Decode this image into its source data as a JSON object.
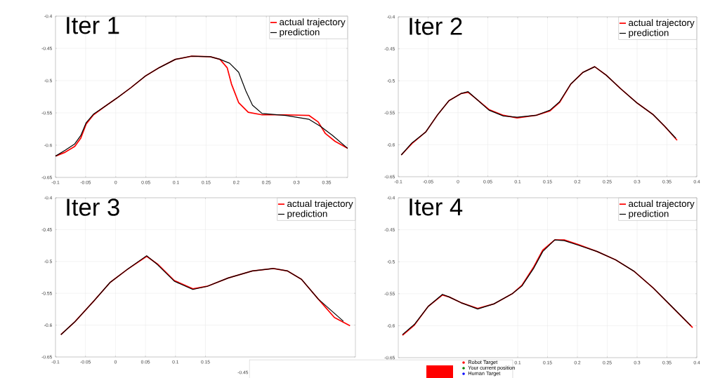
{
  "chart_data": [
    {
      "type": "line",
      "title": "Iter 1",
      "xlim": [
        -0.1,
        0.385
      ],
      "ylim": [
        -0.65,
        -0.4
      ],
      "xticks": [
        -0.1,
        -0.05,
        0,
        0.05,
        0.1,
        0.15,
        0.2,
        0.25,
        0.3,
        0.35
      ],
      "yticks": [
        -0.65,
        -0.6,
        -0.55,
        -0.5,
        -0.45,
        -0.4
      ],
      "grid": true,
      "legend": "top right",
      "series": [
        {
          "name": "actual trajectory",
          "color": "#ff0000",
          "x": [
            -0.1,
            -0.084,
            -0.068,
            -0.058,
            -0.049,
            -0.037,
            -0.018,
            0.002,
            0.025,
            0.049,
            0.072,
            0.099,
            0.126,
            0.157,
            0.173,
            0.185,
            0.192,
            0.204,
            0.22,
            0.243,
            0.282,
            0.321,
            0.336,
            0.348,
            0.364,
            0.385
          ],
          "values": [
            -0.617,
            -0.611,
            -0.602,
            -0.589,
            -0.567,
            -0.553,
            -0.54,
            -0.527,
            -0.511,
            -0.493,
            -0.48,
            -0.467,
            -0.462,
            -0.463,
            -0.467,
            -0.48,
            -0.505,
            -0.534,
            -0.549,
            -0.553,
            -0.553,
            -0.554,
            -0.564,
            -0.582,
            -0.594,
            -0.605
          ]
        },
        {
          "name": "prediction",
          "color": "#000000",
          "x": [
            -0.1,
            -0.084,
            -0.068,
            -0.058,
            -0.049,
            -0.037,
            -0.018,
            0.002,
            0.025,
            0.049,
            0.072,
            0.099,
            0.126,
            0.157,
            0.173,
            0.189,
            0.204,
            0.216,
            0.227,
            0.243,
            0.282,
            0.321,
            0.34,
            0.36,
            0.385
          ],
          "values": [
            -0.617,
            -0.608,
            -0.598,
            -0.585,
            -0.565,
            -0.552,
            -0.54,
            -0.527,
            -0.511,
            -0.493,
            -0.48,
            -0.467,
            -0.462,
            -0.463,
            -0.467,
            -0.473,
            -0.487,
            -0.516,
            -0.538,
            -0.551,
            -0.554,
            -0.56,
            -0.571,
            -0.585,
            -0.605
          ]
        }
      ]
    },
    {
      "type": "line",
      "title": "Iter 2",
      "xlim": [
        -0.1,
        0.4
      ],
      "ylim": [
        -0.65,
        -0.4
      ],
      "xticks": [
        -0.1,
        -0.05,
        0,
        0.05,
        0.1,
        0.15,
        0.2,
        0.25,
        0.3,
        0.35,
        0.4
      ],
      "yticks": [
        -0.65,
        -0.6,
        -0.55,
        -0.5,
        -0.45,
        -0.4
      ],
      "grid": true,
      "legend": "top right",
      "series": [
        {
          "name": "actual trajectory",
          "color": "#ff0000",
          "x": [
            -0.095,
            -0.077,
            -0.054,
            -0.034,
            -0.015,
            0.005,
            0.017,
            0.029,
            0.052,
            0.076,
            0.099,
            0.131,
            0.154,
            0.17,
            0.189,
            0.209,
            0.229,
            0.248,
            0.272,
            0.299,
            0.327,
            0.346,
            0.367
          ],
          "values": [
            -0.616,
            -0.598,
            -0.58,
            -0.553,
            -0.531,
            -0.52,
            -0.518,
            -0.527,
            -0.545,
            -0.554,
            -0.558,
            -0.554,
            -0.547,
            -0.534,
            -0.505,
            -0.487,
            -0.478,
            -0.491,
            -0.512,
            -0.534,
            -0.553,
            -0.571,
            -0.593
          ]
        },
        {
          "name": "prediction",
          "color": "#000000",
          "x": [
            -0.095,
            -0.077,
            -0.054,
            -0.034,
            -0.015,
            0.005,
            0.017,
            0.029,
            0.052,
            0.076,
            0.099,
            0.131,
            0.154,
            0.17,
            0.189,
            0.209,
            0.229,
            0.248,
            0.272,
            0.299,
            0.327,
            0.346,
            0.365
          ],
          "values": [
            -0.616,
            -0.597,
            -0.58,
            -0.553,
            -0.531,
            -0.52,
            -0.517,
            -0.527,
            -0.546,
            -0.555,
            -0.557,
            -0.554,
            -0.546,
            -0.533,
            -0.505,
            -0.487,
            -0.478,
            -0.491,
            -0.512,
            -0.534,
            -0.553,
            -0.571,
            -0.59
          ]
        }
      ]
    },
    {
      "type": "line",
      "title": "Iter 3",
      "xlim": [
        -0.1,
        0.4
      ],
      "ylim": [
        -0.65,
        -0.4
      ],
      "xticks": [
        -0.1,
        -0.05,
        0,
        0.05,
        0.1,
        0.15
      ],
      "yticks": [
        -0.65,
        -0.6,
        -0.55,
        -0.5,
        -0.45,
        -0.4
      ],
      "grid": true,
      "legend": "top right",
      "series": [
        {
          "name": "actual trajectory",
          "color": "#ff0000",
          "x": [
            -0.091,
            -0.068,
            -0.036,
            -0.009,
            0.019,
            0.052,
            0.07,
            0.098,
            0.129,
            0.153,
            0.188,
            0.228,
            0.263,
            0.287,
            0.31,
            0.338,
            0.365,
            0.391
          ],
          "values": [
            -0.615,
            -0.595,
            -0.562,
            -0.533,
            -0.513,
            -0.492,
            -0.504,
            -0.53,
            -0.543,
            -0.539,
            -0.526,
            -0.515,
            -0.511,
            -0.515,
            -0.528,
            -0.559,
            -0.588,
            -0.601
          ]
        },
        {
          "name": "prediction",
          "color": "#000000",
          "x": [
            -0.091,
            -0.068,
            -0.036,
            -0.009,
            0.019,
            0.052,
            0.07,
            0.098,
            0.129,
            0.153,
            0.188,
            0.228,
            0.263,
            0.287,
            0.31,
            0.338,
            0.38
          ],
          "values": [
            -0.615,
            -0.595,
            -0.562,
            -0.533,
            -0.513,
            -0.491,
            -0.505,
            -0.531,
            -0.544,
            -0.539,
            -0.526,
            -0.515,
            -0.511,
            -0.515,
            -0.528,
            -0.559,
            -0.594
          ]
        }
      ]
    },
    {
      "type": "line",
      "title": "Iter 4",
      "xlim": [
        -0.1,
        0.4
      ],
      "ylim": [
        -0.65,
        -0.4
      ],
      "xticks": [
        0.1,
        0.15,
        0.2,
        0.25,
        0.3,
        0.35,
        0.4
      ],
      "yticks": [
        -0.65,
        -0.6,
        -0.55,
        -0.5,
        -0.45,
        -0.4
      ],
      "grid": true,
      "legend": "top right",
      "series": [
        {
          "name": "actual trajectory",
          "color": "#ff0000",
          "x": [
            -0.093,
            -0.073,
            -0.05,
            -0.026,
            -0.015,
            0.005,
            0.033,
            0.06,
            0.091,
            0.107,
            0.127,
            0.142,
            0.162,
            0.178,
            0.201,
            0.233,
            0.264,
            0.295,
            0.327,
            0.358,
            0.393
          ],
          "values": [
            -0.615,
            -0.599,
            -0.57,
            -0.552,
            -0.555,
            -0.564,
            -0.573,
            -0.566,
            -0.55,
            -0.537,
            -0.508,
            -0.482,
            -0.466,
            -0.466,
            -0.473,
            -0.484,
            -0.497,
            -0.515,
            -0.541,
            -0.57,
            -0.603
          ]
        },
        {
          "name": "prediction",
          "color": "#000000",
          "x": [
            -0.093,
            -0.073,
            -0.05,
            -0.026,
            -0.015,
            0.005,
            0.033,
            0.06,
            0.091,
            0.107,
            0.127,
            0.142,
            0.162,
            0.178,
            0.201,
            0.233,
            0.264,
            0.295,
            0.327,
            0.358,
            0.39
          ],
          "values": [
            -0.614,
            -0.598,
            -0.57,
            -0.551,
            -0.555,
            -0.564,
            -0.574,
            -0.566,
            -0.55,
            -0.538,
            -0.51,
            -0.484,
            -0.466,
            -0.467,
            -0.474,
            -0.484,
            -0.497,
            -0.515,
            -0.541,
            -0.57,
            -0.6
          ]
        }
      ]
    },
    {
      "type": "other",
      "annotations": [
        "-0.45",
        "Robot Target",
        "Your current position",
        "Human Target"
      ]
    }
  ]
}
